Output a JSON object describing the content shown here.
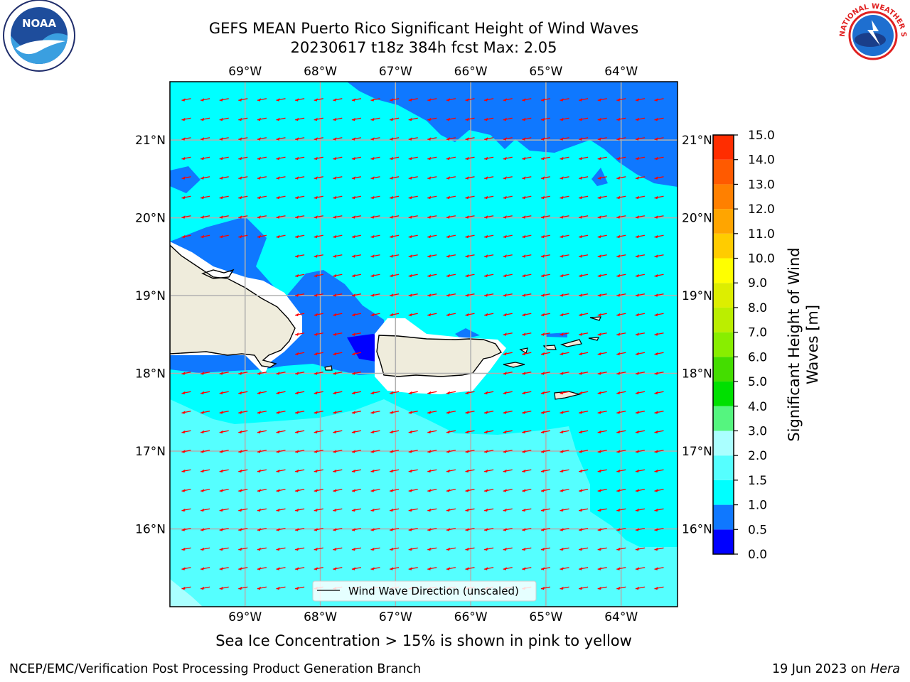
{
  "title": {
    "line1": "GEFS MEAN Puerto Rico Significant Height of Wind Waves",
    "line2": "20230617 t18z 384h fcst   Max: 2.05"
  },
  "map": {
    "lon_range": [
      -70.0,
      -63.25
    ],
    "lat_range": [
      15.0,
      21.75
    ],
    "lon_ticks": [
      -69,
      -68,
      -67,
      -66,
      -65,
      -64
    ],
    "lon_tick_labels": [
      "69°W",
      "68°W",
      "67°W",
      "66°W",
      "65°W",
      "64°W"
    ],
    "lat_ticks": [
      16,
      17,
      18,
      19,
      20,
      21
    ],
    "lat_tick_labels": [
      "16°N",
      "17°N",
      "18°N",
      "19°N",
      "20°N",
      "21°N"
    ],
    "arrow_color": "#ff0000",
    "land_color": "#efecdc",
    "legend_label": "Wind Wave Direction (unscaled)"
  },
  "colorbar": {
    "label": "Significant Height of Wind Waves [m]",
    "levels": [
      "0.0",
      "0.5",
      "1.0",
      "1.5",
      "2.0",
      "3.0",
      "4.0",
      "5.0",
      "6.0",
      "7.0",
      "8.0",
      "9.0",
      "10.0",
      "11.0",
      "12.0",
      "13.0",
      "14.0",
      "15.0"
    ],
    "colors": [
      "#0000ff",
      "#0f78ff",
      "#00ffff",
      "#55ffff",
      "#aaffff",
      "#55f57f",
      "#00e000",
      "#44dd00",
      "#88ee00",
      "#bbee00",
      "#ddee00",
      "#ffff00",
      "#ffcc00",
      "#ffa500",
      "#ff8000",
      "#ff5a00",
      "#ff2d00"
    ]
  },
  "caption": "Sea Ice Concentration > 15% is shown in pink to yellow",
  "footer": {
    "left": "NCEP/EMC/Verification Post Processing Product Generation Branch",
    "right_prefix": "19 Jun 2023 on ",
    "right_host": "Hera"
  },
  "logos": {
    "noaa_text": "NOAA",
    "nws_text": "NATIONAL WEATHER SERVICE"
  }
}
